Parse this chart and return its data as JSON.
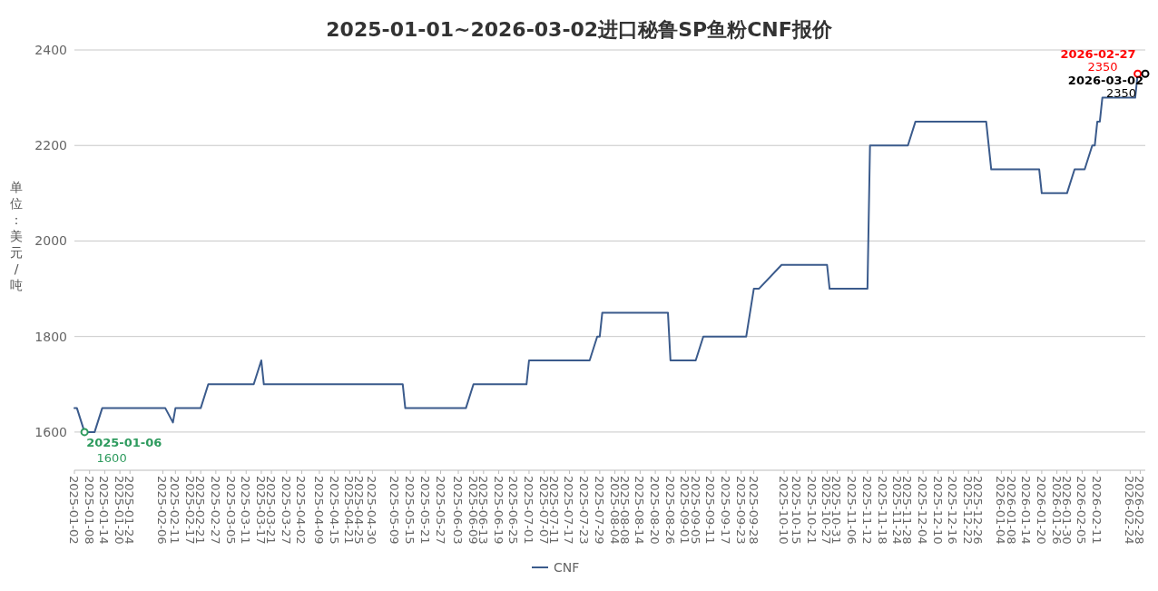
{
  "chart_data": {
    "type": "line",
    "title": "2025-01-01~2026-03-02进口秘鲁SP鱼粉CNF报价",
    "ylabel": "单位：美元/吨",
    "xlim": [
      "2025-01-02",
      "2026-03-02"
    ],
    "ylim": [
      1520,
      2400
    ],
    "yticks": [
      1600,
      1800,
      2000,
      2200,
      2400
    ],
    "xticks": [
      "2025-01-02",
      "2025-01-08",
      "2025-01-14",
      "2025-01-20",
      "2025-01-24",
      "2025-02-06",
      "2025-02-11",
      "2025-02-17",
      "2025-02-21",
      "2025-02-27",
      "2025-03-05",
      "2025-03-11",
      "2025-03-17",
      "2025-03-21",
      "2025-03-27",
      "2025-04-02",
      "2025-04-09",
      "2025-04-15",
      "2025-04-21",
      "2025-04-25",
      "2025-04-30",
      "2025-05-09",
      "2025-05-15",
      "2025-05-21",
      "2025-05-27",
      "2025-06-03",
      "2025-06-09",
      "2025-06-13",
      "2025-06-19",
      "2025-06-25",
      "2025-07-01",
      "2025-07-07",
      "2025-07-11",
      "2025-07-17",
      "2025-07-23",
      "2025-07-29",
      "2025-08-04",
      "2025-08-08",
      "2025-08-14",
      "2025-08-20",
      "2025-08-26",
      "2025-09-01",
      "2025-09-05",
      "2025-09-11",
      "2025-09-17",
      "2025-09-23",
      "2025-09-28",
      "2025-10-10",
      "2025-10-15",
      "2025-10-21",
      "2025-10-27",
      "2025-10-31",
      "2025-11-06",
      "2025-11-12",
      "2025-11-18",
      "2025-11-24",
      "2025-11-28",
      "2025-12-04",
      "2025-12-10",
      "2025-12-16",
      "2025-12-22",
      "2025-12-26",
      "2026-01-04",
      "2026-01-08",
      "2026-01-14",
      "2026-01-20",
      "2026-01-26",
      "2026-01-30",
      "2026-02-05",
      "2026-02-11",
      "2026-02-24",
      "2026-02-28"
    ],
    "grid": "y",
    "legend": "bottom",
    "marker": "none",
    "line_style": "solid",
    "series": [
      {
        "name": "CNF",
        "color": "#3b5b8c",
        "x": [
          "2025-01-02",
          "2025-01-03",
          "2025-01-06",
          "2025-01-10",
          "2025-01-13",
          "2025-02-07",
          "2025-02-10",
          "2025-02-11",
          "2025-02-21",
          "2025-02-24",
          "2025-03-14",
          "2025-03-17",
          "2025-03-18",
          "2025-05-12",
          "2025-05-13",
          "2025-06-06",
          "2025-06-09",
          "2025-06-30",
          "2025-07-01",
          "2025-07-25",
          "2025-07-28",
          "2025-07-29",
          "2025-07-30",
          "2025-08-25",
          "2025-08-26",
          "2025-09-05",
          "2025-09-08",
          "2025-09-25",
          "2025-09-28",
          "2025-09-30",
          "2025-10-09",
          "2025-10-27",
          "2025-10-28",
          "2025-11-12",
          "2025-11-13",
          "2025-11-28",
          "2025-12-01",
          "2025-12-29",
          "2025-12-31",
          "2026-01-19",
          "2026-01-20",
          "2026-01-30",
          "2026-02-02",
          "2026-02-06",
          "2026-02-09",
          "2026-02-10",
          "2026-02-11",
          "2026-02-12",
          "2026-02-13",
          "2026-02-26",
          "2026-02-27",
          "2026-03-02"
        ],
        "values": [
          1650,
          1650,
          1600,
          1600,
          1650,
          1650,
          1620,
          1650,
          1650,
          1700,
          1700,
          1750,
          1700,
          1700,
          1650,
          1650,
          1700,
          1700,
          1750,
          1750,
          1800,
          1800,
          1850,
          1850,
          1750,
          1750,
          1800,
          1800,
          1900,
          1900,
          1950,
          1950,
          1900,
          1900,
          2200,
          2200,
          2250,
          2250,
          2150,
          2150,
          2100,
          2100,
          2150,
          2150,
          2200,
          2200,
          2250,
          2250,
          2300,
          2300,
          2350,
          2350
        ]
      }
    ],
    "annotations": [
      {
        "text": "2025-01-06",
        "x": "2025-01-06",
        "y": 1600
      },
      {
        "text": "1600",
        "x": "2025-01-06",
        "y": 1600
      },
      {
        "text": "2026-02-27",
        "x": "2026-02-27",
        "y": 2350
      },
      {
        "text": "2350",
        "x": "2026-02-27",
        "y": 2350
      },
      {
        "text": "2026-03-02",
        "x": "2026-03-02",
        "y": 2350
      },
      {
        "text": "2350",
        "x": "2026-03-02",
        "y": 2350
      }
    ]
  }
}
